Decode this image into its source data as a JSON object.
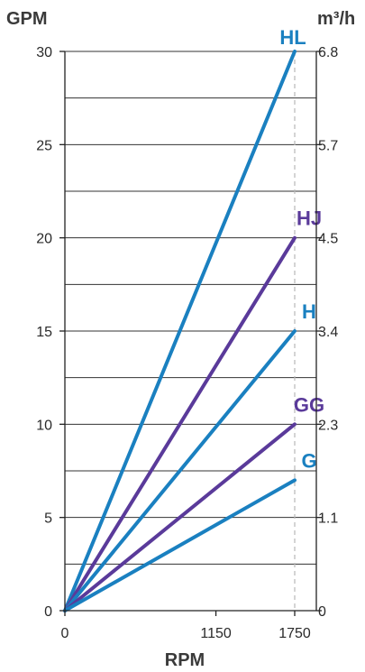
{
  "chart_data": {
    "type": "line",
    "ylabel": "GPM",
    "y2label": "m³/h",
    "xlabel": "RPM",
    "xlim": [
      0,
      1750
    ],
    "ylim": [
      0,
      30
    ],
    "x_ticks": [
      "0",
      "1150",
      "1750"
    ],
    "y_ticks": [
      "0",
      "5",
      "10",
      "15",
      "20",
      "25",
      "30"
    ],
    "y2_ticks": [
      "0",
      "1.1",
      "2.3",
      "3.4",
      "4.5",
      "5.7",
      "6.8"
    ],
    "grid": true,
    "colors": {
      "blue": "#1a80c0",
      "purple": "#5a3a9a"
    },
    "series": [
      {
        "name": "HL",
        "color": "blue",
        "x": [
          0,
          1750
        ],
        "y": [
          0,
          30
        ]
      },
      {
        "name": "HJ",
        "color": "purple",
        "x": [
          0,
          1750
        ],
        "y": [
          0,
          20
        ]
      },
      {
        "name": "H",
        "color": "blue",
        "x": [
          0,
          1750
        ],
        "y": [
          0,
          15
        ]
      },
      {
        "name": "GG",
        "color": "purple",
        "x": [
          0,
          1750
        ],
        "y": [
          0,
          10
        ]
      },
      {
        "name": "G",
        "color": "blue",
        "x": [
          0,
          1750
        ],
        "y": [
          0,
          7
        ]
      }
    ]
  }
}
